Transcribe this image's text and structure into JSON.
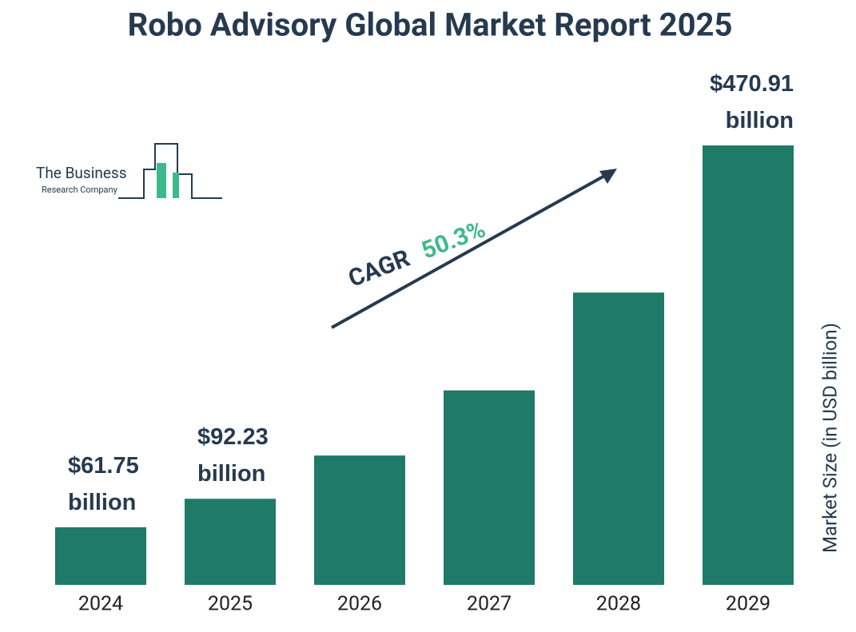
{
  "chart_data": {
    "type": "bar",
    "title": "Robo Advisory Global Market Report 2025",
    "categories": [
      "2024",
      "2025",
      "2026",
      "2027",
      "2028",
      "2029"
    ],
    "values": [
      61.75,
      92.23,
      138.6,
      208.4,
      313.2,
      470.91
    ],
    "value_labels": [
      "$61.75 billion",
      "$92.23 billion",
      null,
      null,
      null,
      "$470.91 billion"
    ],
    "color": "#1f7a68",
    "y_axis_label": "Market Size (in USD billion)",
    "annotation": {
      "label": "CAGR",
      "value": "50.3%"
    },
    "logo": {
      "line1": "The Business",
      "line2": "Research Company"
    }
  }
}
